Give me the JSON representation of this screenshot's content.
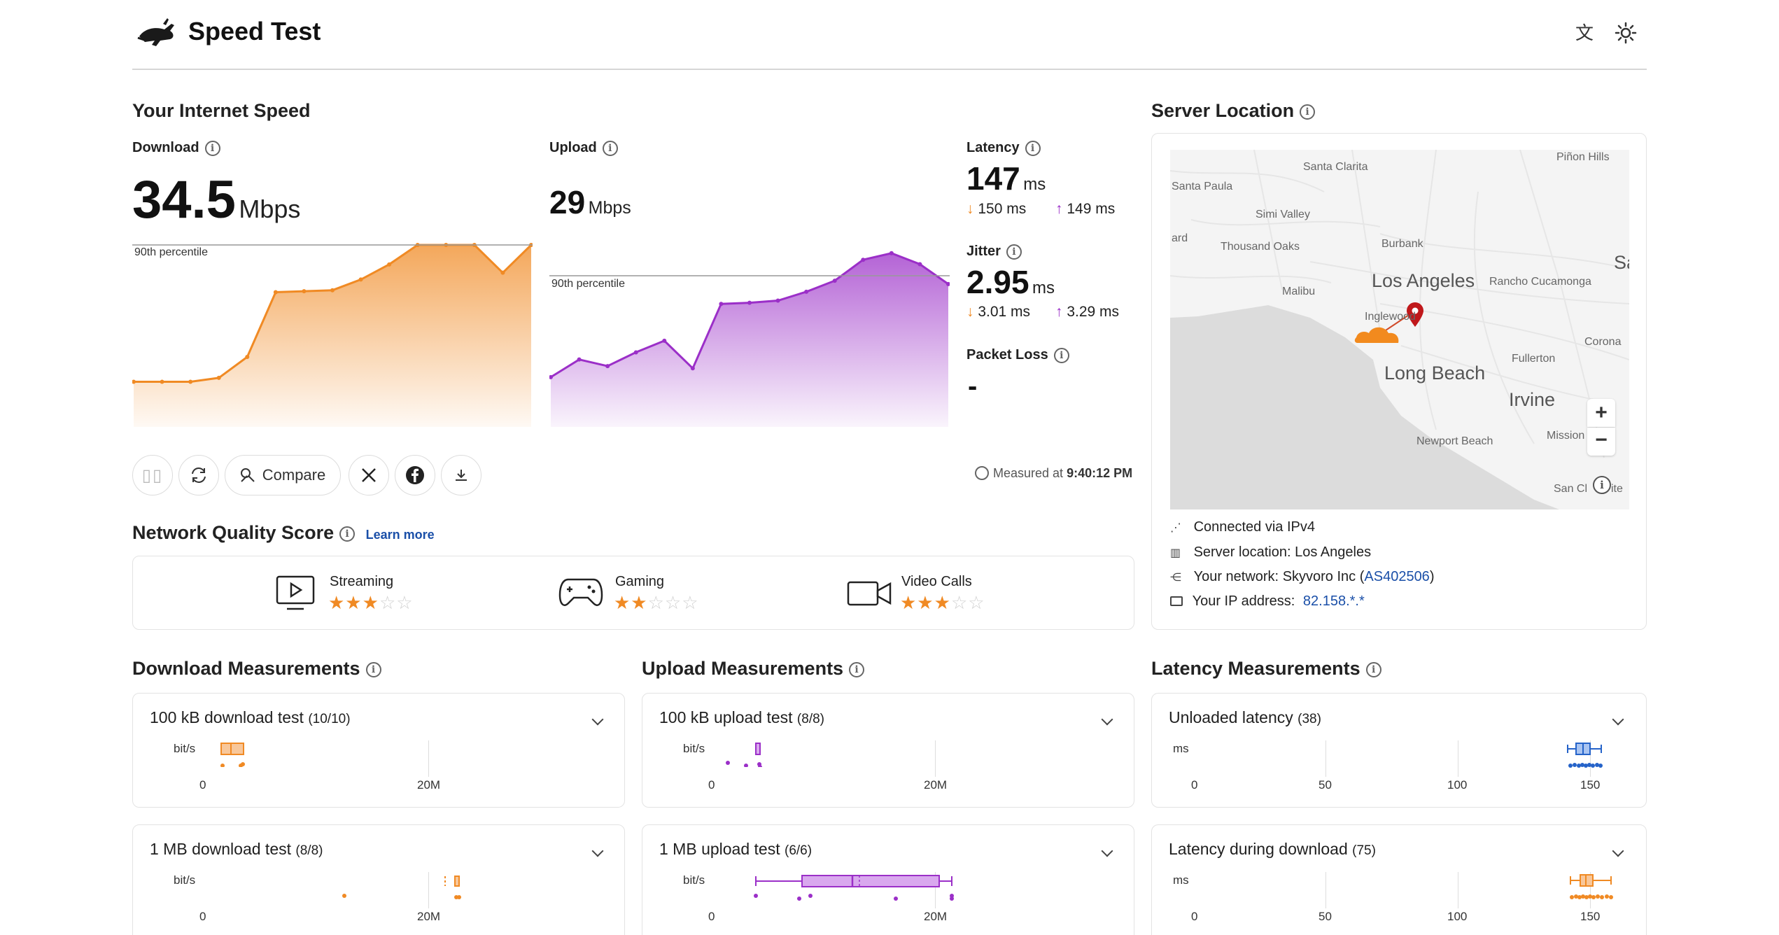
{
  "header": {
    "title": "Speed Test"
  },
  "speed": {
    "section_title": "Your Internet Speed",
    "download": {
      "label": "Download",
      "value": "34.5",
      "unit": "Mbps",
      "percentile": "90th percentile"
    },
    "upload": {
      "label": "Upload",
      "value": "29",
      "unit": "Mbps",
      "percentile": "90th percentile"
    },
    "latency": {
      "label": "Latency",
      "value": "147",
      "unit": "ms",
      "down": "150 ms",
      "up": "149 ms"
    },
    "jitter": {
      "label": "Jitter",
      "value": "2.95",
      "unit": "ms",
      "down": "3.01 ms",
      "up": "3.29 ms"
    },
    "packet_loss": {
      "label": "Packet Loss",
      "value": "-"
    },
    "compare_label": "Compare",
    "measured_prefix": "Measured at",
    "measured_time": "9:40:12 PM"
  },
  "quality": {
    "title": "Network Quality Score",
    "learn_more": "Learn more",
    "items": [
      {
        "label": "Streaming",
        "stars": 3
      },
      {
        "label": "Gaming",
        "stars": 2
      },
      {
        "label": "Video Calls",
        "stars": 3
      }
    ]
  },
  "server": {
    "title": "Server Location",
    "connected_label": "Connected via",
    "connected_value": "IPv4",
    "location_label": "Server location:",
    "location_value": "Los Angeles",
    "network_label": "Your network:",
    "network_value": "Skyvoro Inc",
    "network_asn": "AS402506",
    "ip_label": "Your IP address:",
    "ip_value": "82.158.*.*",
    "map_labels": {
      "santa_clarita": "Santa Clarita",
      "pinon_hills": "Piñon Hills",
      "santa_paula": "Santa Paula",
      "simi_valley": "Simi Valley",
      "ard": "ard",
      "thousand_oaks": "Thousand Oaks",
      "burbank": "Burbank",
      "sa": "Sa",
      "los_angeles": "Los Angeles",
      "rancho": "Rancho Cucamonga",
      "malibu": "Malibu",
      "inglewood": "Inglewood",
      "corona": "Corona",
      "fullerton": "Fullerton",
      "long_beach": "Long Beach",
      "irvine": "Irvine",
      "mission": "Mission",
      "newport": "Newport Beach",
      "san_cl": "San Cl",
      "ite": "ite"
    }
  },
  "measurements": {
    "download": {
      "title": "Download Measurements",
      "tests": [
        {
          "name": "100 kB download test",
          "count": "(10/10)",
          "unit": "bit/s",
          "ticks": [
            "0",
            "20M"
          ]
        },
        {
          "name": "1 MB download test",
          "count": "(8/8)",
          "unit": "bit/s",
          "ticks": [
            "0",
            "20M"
          ]
        }
      ]
    },
    "upload": {
      "title": "Upload Measurements",
      "tests": [
        {
          "name": "100 kB upload test",
          "count": "(8/8)",
          "unit": "bit/s",
          "ticks": [
            "0",
            "20M"
          ]
        },
        {
          "name": "1 MB upload test",
          "count": "(6/6)",
          "unit": "bit/s",
          "ticks": [
            "0",
            "20M"
          ]
        }
      ]
    },
    "latency": {
      "title": "Latency Measurements",
      "tests": [
        {
          "name": "Unloaded latency",
          "count": "(38)",
          "unit": "ms",
          "ticks": [
            "0",
            "50",
            "100",
            "150"
          ]
        },
        {
          "name": "Latency during download",
          "count": "(75)",
          "unit": "ms",
          "ticks": [
            "0",
            "50",
            "100",
            "150"
          ]
        }
      ]
    }
  },
  "colors": {
    "download": "#f08a24",
    "upload": "#9b2fc8",
    "latency": "#2563c9",
    "link": "#1a4fa8"
  },
  "chart_data": [
    {
      "type": "area",
      "series": [
        {
          "name": "Download",
          "values": [
            6.4,
            6.4,
            6.4,
            7.2,
            11.5,
            24.8,
            25.0,
            25.2,
            27.4,
            30.5,
            34.5,
            34.5,
            34.5,
            28.8,
            34.5
          ]
        }
      ]
    },
    {
      "type": "area",
      "series": [
        {
          "name": "Upload",
          "values": [
            6.5,
            9.7,
            8.5,
            11.0,
            13.1,
            8.1,
            19.8,
            20.0,
            20.4,
            22.0,
            24.0,
            27.8,
            29.0,
            27.0,
            23.4
          ]
        }
      ]
    }
  ]
}
